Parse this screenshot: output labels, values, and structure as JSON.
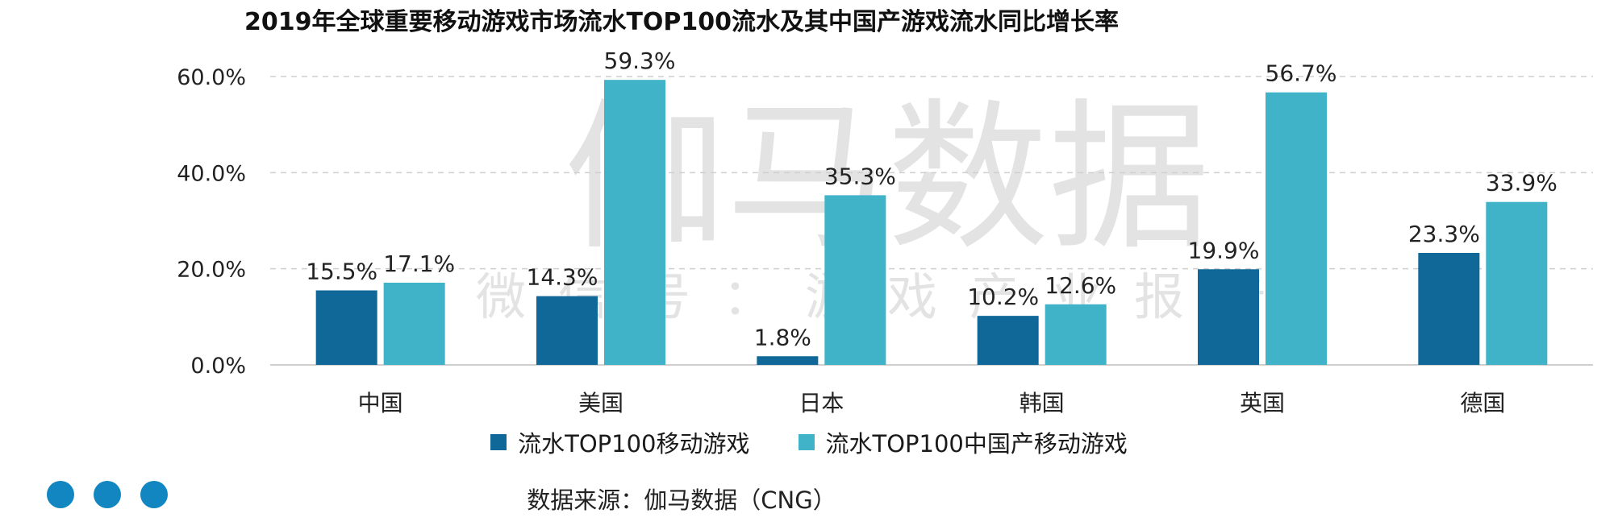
{
  "chart_data": {
    "type": "bar",
    "title": "2019年全球重要移动游戏市场流水TOP100流水及其中国产游戏流水同比增长率",
    "categories": [
      "中国",
      "美国",
      "日本",
      "韩国",
      "英国",
      "德国"
    ],
    "series": [
      {
        "name": "流水TOP100移动游戏",
        "values": [
          15.5,
          14.3,
          1.8,
          10.2,
          19.9,
          23.3
        ],
        "labels": [
          "15.5%",
          "14.3%",
          "1.8%",
          "10.2%",
          "19.9%",
          "23.3%"
        ],
        "color": "#0f6898"
      },
      {
        "name": "流水TOP100中国产移动游戏",
        "values": [
          17.1,
          59.3,
          35.3,
          12.6,
          56.7,
          33.9
        ],
        "labels": [
          "17.1%",
          "59.3%",
          "35.3%",
          "12.6%",
          "56.7%",
          "33.9%"
        ],
        "color": "#41b3c9"
      }
    ],
    "yticks": [
      "0.0%",
      "20.0%",
      "40.0%",
      "60.0%"
    ],
    "ylim": [
      0,
      60
    ],
    "grid": true,
    "legend_position": "bottom"
  },
  "watermark": {
    "main": "伽马数据",
    "sub": "微信号：游戏产业报告"
  },
  "source": "数据来源：伽马数据（CNG）",
  "decoration": {
    "dots_color": "#1186c1"
  }
}
